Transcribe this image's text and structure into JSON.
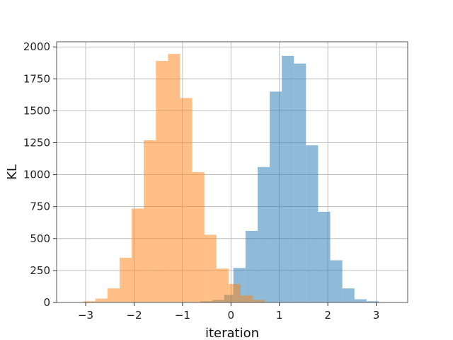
{
  "chart_data": {
    "type": "bar",
    "title": "",
    "xlabel": "iteration",
    "ylabel": "KL",
    "xlim": [
      -3.6,
      3.65
    ],
    "ylim": [
      0,
      2040
    ],
    "xticks": [
      -3,
      -2,
      -1,
      0,
      1,
      2,
      3
    ],
    "xtick_labels": [
      "−3",
      "−2",
      "−1",
      "0",
      "1",
      "2",
      "3"
    ],
    "yticks": [
      0,
      250,
      500,
      750,
      1000,
      1250,
      1500,
      1750,
      2000
    ],
    "ytick_labels": [
      "0",
      "250",
      "500",
      "750",
      "1000",
      "1250",
      "1500",
      "1750",
      "2000"
    ],
    "grid": true,
    "legend": "none",
    "series": [
      {
        "color": "#1f77b4",
        "opacity": 0.5,
        "bins": [
          [
            -0.63,
            -0.38,
            10
          ],
          [
            -0.38,
            -0.14,
            20
          ],
          [
            -0.14,
            0.05,
            60
          ],
          [
            0.05,
            0.3,
            270
          ],
          [
            0.3,
            0.55,
            560
          ],
          [
            0.55,
            0.8,
            1060
          ],
          [
            0.8,
            1.05,
            1650
          ],
          [
            1.05,
            1.3,
            1930
          ],
          [
            1.3,
            1.55,
            1870
          ],
          [
            1.55,
            1.8,
            1230
          ],
          [
            1.8,
            2.05,
            710
          ],
          [
            2.05,
            2.3,
            330
          ],
          [
            2.3,
            2.55,
            110
          ],
          [
            2.55,
            2.8,
            25
          ],
          [
            2.8,
            3.05,
            10
          ]
        ]
      },
      {
        "color": "#ff7f0e",
        "opacity": 0.5,
        "bins": [
          [
            -3.05,
            -2.8,
            10
          ],
          [
            -2.8,
            -2.55,
            30
          ],
          [
            -2.55,
            -2.3,
            110
          ],
          [
            -2.3,
            -2.05,
            350
          ],
          [
            -2.05,
            -1.8,
            735
          ],
          [
            -1.8,
            -1.55,
            1270
          ],
          [
            -1.55,
            -1.3,
            1890
          ],
          [
            -1.3,
            -1.05,
            1945
          ],
          [
            -1.05,
            -0.8,
            1600
          ],
          [
            -0.8,
            -0.55,
            1020
          ],
          [
            -0.55,
            -0.3,
            530
          ],
          [
            -0.3,
            -0.05,
            265
          ],
          [
            -0.05,
            0.2,
            145
          ],
          [
            0.2,
            0.45,
            55
          ],
          [
            0.45,
            0.7,
            20
          ]
        ]
      }
    ]
  }
}
